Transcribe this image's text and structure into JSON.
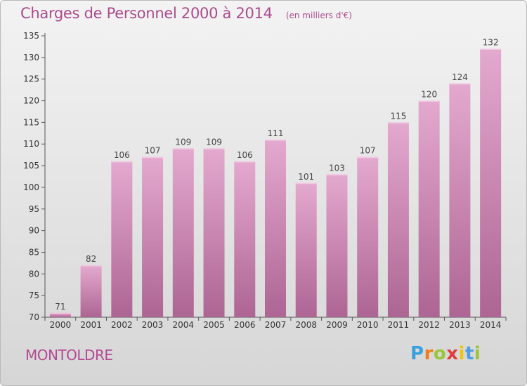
{
  "title": "Charges de Personnel 2000 à 2014",
  "subtitle": "(en milliers d'€)",
  "commune": "MONTOLDRE",
  "logo": {
    "letters": [
      "P",
      "r",
      "o",
      "x",
      "i",
      "t",
      "i"
    ],
    "colors": [
      "#3aa0dd",
      "#ef7d1a",
      "#9ac53a",
      "#e03c3c",
      "#f1c40f",
      "#4d9de0",
      "#9ac53a"
    ]
  },
  "colors": {
    "bar_top": "#e4a9cf",
    "bar_bottom": "#ad6593",
    "text_accent": "#ab4c8c"
  },
  "chart_data": {
    "type": "bar",
    "title": "Charges de Personnel 2000 à 2014",
    "subtitle": "(en milliers d'€)",
    "categories": [
      "2000",
      "2001",
      "2002",
      "2003",
      "2004",
      "2005",
      "2006",
      "2007",
      "2008",
      "2009",
      "2010",
      "2011",
      "2012",
      "2013",
      "2014"
    ],
    "values": [
      71,
      82,
      106,
      107,
      109,
      109,
      106,
      111,
      101,
      103,
      107,
      115,
      120,
      124,
      132
    ],
    "ylim": [
      70,
      135
    ],
    "yticks": [
      70,
      75,
      80,
      85,
      90,
      95,
      100,
      105,
      110,
      115,
      120,
      125,
      130,
      135
    ],
    "grid": false,
    "data_labels": true
  }
}
